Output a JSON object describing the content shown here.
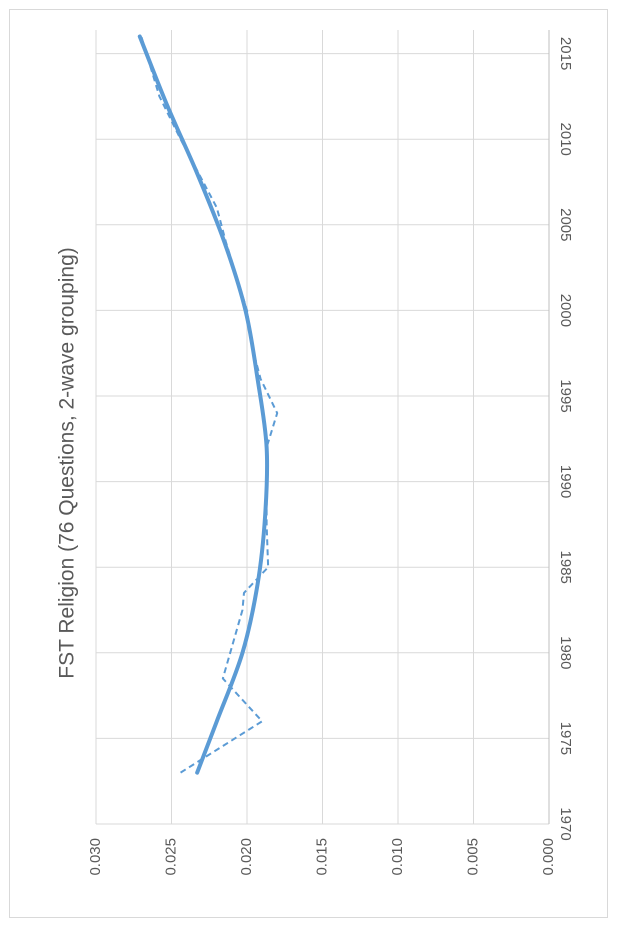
{
  "chart_data": {
    "type": "line",
    "title": "FST Religion (76 Questions, 2-wave grouping)",
    "orientation": "rotated-90-clockwise",
    "xlabel": "",
    "ylabel": "",
    "xlim": [
      1970,
      2016
    ],
    "ylim": [
      0.0,
      0.03
    ],
    "x_ticks": [
      "1970",
      "1975",
      "1980",
      "1985",
      "1990",
      "1995",
      "2000",
      "2005",
      "2010",
      "2015"
    ],
    "y_ticks": [
      "0.000",
      "0.005",
      "0.010",
      "0.015",
      "0.020",
      "0.025",
      "0.030"
    ],
    "grid": true,
    "legend": "none",
    "series": [
      {
        "style": "dashed",
        "color": "#5B9BD5",
        "points": [
          [
            1973,
            0.0244
          ],
          [
            1976,
            0.019
          ],
          [
            1978.5,
            0.0216
          ],
          [
            1982.5,
            0.0203
          ],
          [
            1983.5,
            0.0202
          ],
          [
            1985,
            0.0186
          ],
          [
            1987.5,
            0.0187
          ],
          [
            1992,
            0.0187
          ],
          [
            1994,
            0.018
          ],
          [
            1996,
            0.0191
          ],
          [
            1998,
            0.0197
          ],
          [
            2000,
            0.02
          ],
          [
            2004,
            0.0214
          ],
          [
            2006,
            0.022
          ],
          [
            2010,
            0.0244
          ],
          [
            2012.5,
            0.0258
          ],
          [
            2016,
            0.027
          ]
        ]
      },
      {
        "style": "solid",
        "color": "#5B9BD5",
        "points": [
          [
            1973,
            0.0233
          ],
          [
            1976,
            0.022
          ],
          [
            1980,
            0.0203
          ],
          [
            1984,
            0.0193
          ],
          [
            1988,
            0.0188
          ],
          [
            1992,
            0.0187
          ],
          [
            1996,
            0.0193
          ],
          [
            2000,
            0.0201
          ],
          [
            2004,
            0.0215
          ],
          [
            2008,
            0.0233
          ],
          [
            2012,
            0.0253
          ],
          [
            2016,
            0.0271
          ]
        ]
      }
    ]
  }
}
